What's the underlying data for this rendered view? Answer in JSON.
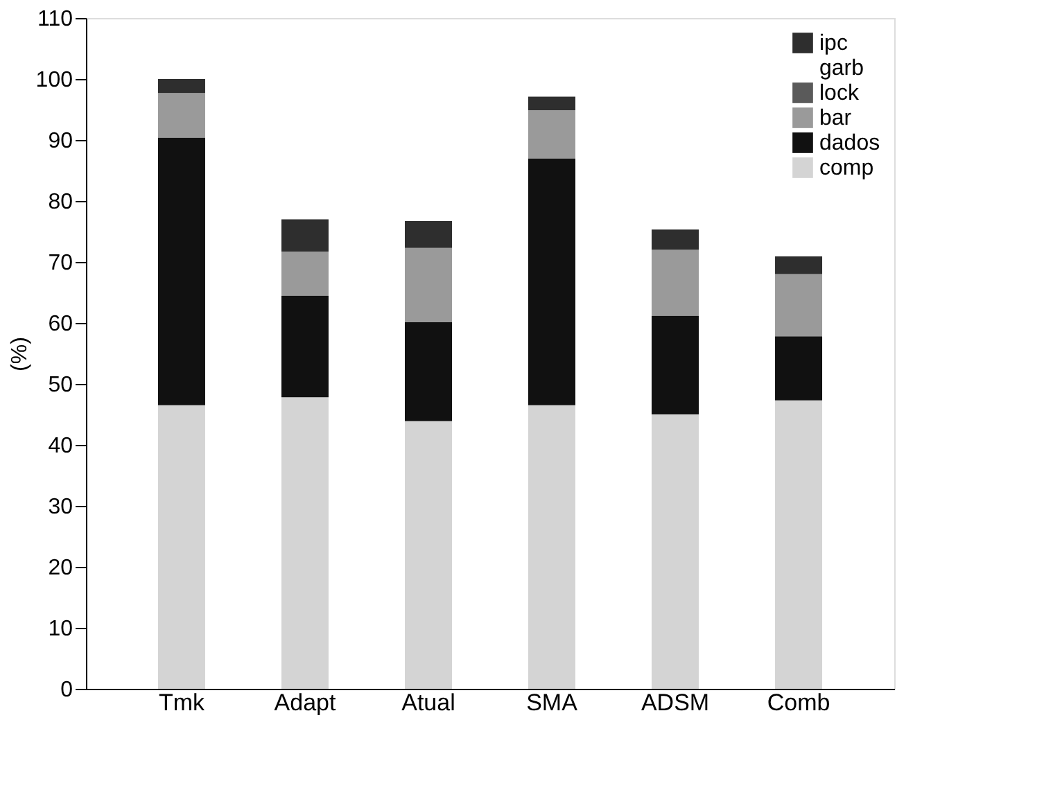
{
  "chart_data": {
    "type": "bar",
    "stacked": true,
    "ylabel": "(%)",
    "categories": [
      "Tmk",
      "Adapt",
      "Atual",
      "SMA",
      "ADSM",
      "Comb"
    ],
    "series": [
      {
        "name": "comp",
        "color": "#d4d4d4",
        "values": [
          46.5,
          47.8,
          43.9,
          46.5,
          45,
          47.3
        ]
      },
      {
        "name": "dados",
        "color": "#111111",
        "values": [
          43.9,
          16.7,
          16.2,
          40.5,
          16.2,
          10.5
        ]
      },
      {
        "name": "bar",
        "color": "#9a9a9a",
        "values": [
          7.3,
          7.2,
          12.2,
          7.9,
          10.8,
          10.2
        ]
      },
      {
        "name": "lock",
        "color": "#5a5a5a",
        "values": [
          0,
          0,
          0,
          0,
          0,
          0
        ]
      },
      {
        "name": "garb",
        "values": [
          0,
          0,
          0,
          0,
          0,
          0
        ]
      },
      {
        "name": "ipc",
        "color": "#2e2e2e",
        "values": [
          2.3,
          5.3,
          4.4,
          2.2,
          3.3,
          2.9
        ]
      }
    ],
    "ylim": [
      0,
      110
    ],
    "yticks": [
      0,
      10,
      20,
      30,
      40,
      50,
      60,
      70,
      80,
      90,
      100,
      110
    ],
    "legend": "top right",
    "grid": false
  }
}
